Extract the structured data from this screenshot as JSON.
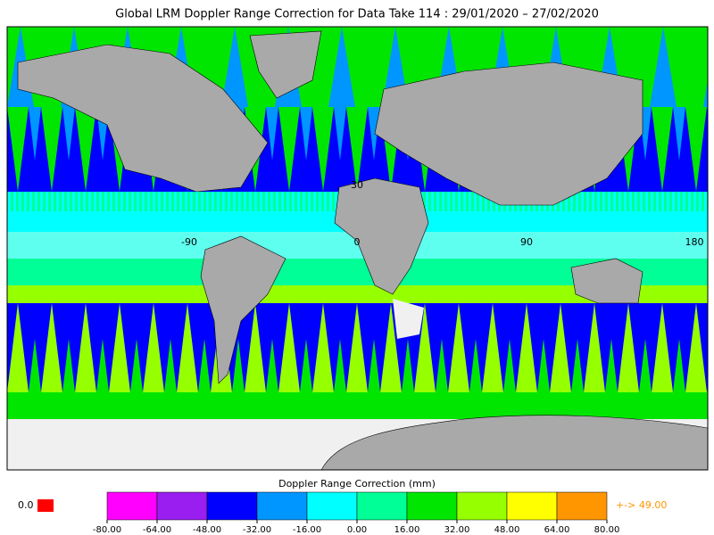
{
  "header": {
    "title": "Global LRM Doppler Range Correction for Data Take 114 : 29/01/2020 – 27/02/2020"
  },
  "map": {
    "labels": [
      "30",
      "-90",
      "0",
      "90",
      "180"
    ]
  },
  "legend": {
    "title": "Doppler Range Correction (mm)",
    "ticks": [
      {
        "value": -80,
        "label": "-80.00"
      },
      {
        "value": -64,
        "label": "-64.00"
      },
      {
        "value": -48,
        "label": "-48.00"
      },
      {
        "value": -32,
        "label": "-32.00"
      },
      {
        "value": -16,
        "label": "-16.00"
      },
      {
        "value": 0,
        "label": "0.00"
      },
      {
        "value": 16,
        "label": "16.00"
      },
      {
        "value": 32,
        "label": "32.00"
      },
      {
        "value": 48,
        "label": "48.00"
      },
      {
        "value": 64,
        "label": "64.00"
      },
      {
        "value": 80,
        "label": "80.00"
      }
    ],
    "colors": [
      "#ff00ff",
      "#9a1ef0",
      "#0000ff",
      "#0096ff",
      "#00ffff",
      "#00ff96",
      "#00e600",
      "#96ff00",
      "#ffff00",
      "#ff9600"
    ]
  },
  "missing": {
    "label": "0.0",
    "color": "#ff0000"
  },
  "overflow": {
    "label": "+-> 49.00",
    "color": "#ff9600"
  }
}
